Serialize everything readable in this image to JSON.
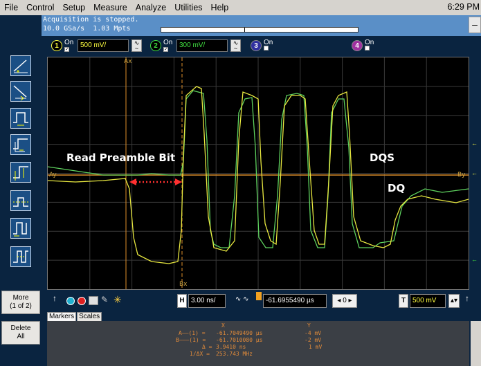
{
  "menubar": {
    "items": [
      "File",
      "Control",
      "Setup",
      "Measure",
      "Analyze",
      "Utilities",
      "Help"
    ],
    "clock": "6:29 PM"
  },
  "status": {
    "acquisition": "Acquisition is stopped.",
    "rate": "10.0 GSa/s  1.03 Mpts"
  },
  "channels": [
    {
      "num": "1",
      "on_label": "On",
      "checked": true,
      "scale": "500 mV/",
      "color": "#ffff40",
      "badge_bg": "#000000"
    },
    {
      "num": "2",
      "on_label": "On",
      "checked": true,
      "scale": "300 mV/",
      "color": "#40e040",
      "badge_bg": "#000000"
    },
    {
      "num": "3",
      "on_label": "On",
      "checked": false,
      "scale": "",
      "color": "#6a6aff",
      "badge_bg": "#3030a0"
    },
    {
      "num": "4",
      "on_label": "On",
      "checked": false,
      "scale": "",
      "color": "#ff5aff",
      "badge_bg": "#a030a0"
    }
  ],
  "sidebar": {
    "more_label": "More\n(1 of 2)",
    "delete_label": "Delete\nAll"
  },
  "screen": {
    "cursor_a_label": "Ax",
    "cursor_b_label": "Bx",
    "marker_ay": "Ay",
    "marker_by": "By",
    "annotations": {
      "preamble": "Read Preamble Bit",
      "dqs": "DQS",
      "dq": "DQ"
    },
    "trace_colors": {
      "ch1": "#e8e840",
      "ch2": "#5fd35f",
      "cursor": "#e0902a",
      "arrow": "#ff3030"
    }
  },
  "hbar": {
    "timebase": "3.00 ns/",
    "delay": "-61.6955490 µs",
    "trigger_level": "500 mV",
    "h_icon": "H",
    "t_icon": "T"
  },
  "tabs": [
    "Markers",
    "Scales"
  ],
  "markers": {
    "header_x": "X",
    "header_y": "Y",
    "rows": [
      {
        "label": "A——(1) =",
        "x": "-61.7049490 µs",
        "y": "-4 mV"
      },
      {
        "label": "B———(1) =",
        "x": "-61.7010080 µs",
        "y": "-2 mV"
      },
      {
        "label": "Δ =",
        "x": "3.9410 ns",
        "y": "1 mV"
      },
      {
        "label": "1/ΔX =",
        "x": "253.743 MHz",
        "y": ""
      }
    ]
  }
}
